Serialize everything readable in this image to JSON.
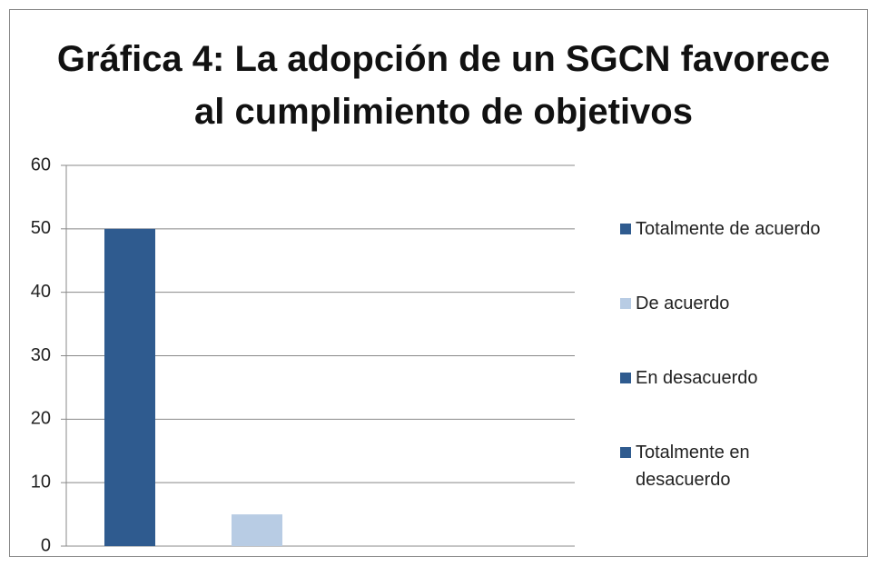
{
  "chart_data": {
    "type": "bar",
    "title": "Gráfica 4: La adopción de un SGCN favorece al cumplimiento de objetivos",
    "categories": [
      null
    ],
    "series": [
      {
        "name": "Totalmente de acuerdo",
        "color": "#2f5b8f",
        "values": [
          50
        ]
      },
      {
        "name": "De acuerdo",
        "color": "#b8cce4",
        "values": [
          5
        ]
      },
      {
        "name": "En desacuerdo",
        "color": "#2f5b8f",
        "values": [
          0
        ]
      },
      {
        "name": "Totalmente en desacuerdo",
        "color": "#2f5b8f",
        "values": [
          0
        ]
      }
    ],
    "ylim": [
      0,
      60
    ],
    "yticks": [
      0,
      10,
      20,
      30,
      40,
      50,
      60
    ],
    "grid": true,
    "legend": "right"
  }
}
